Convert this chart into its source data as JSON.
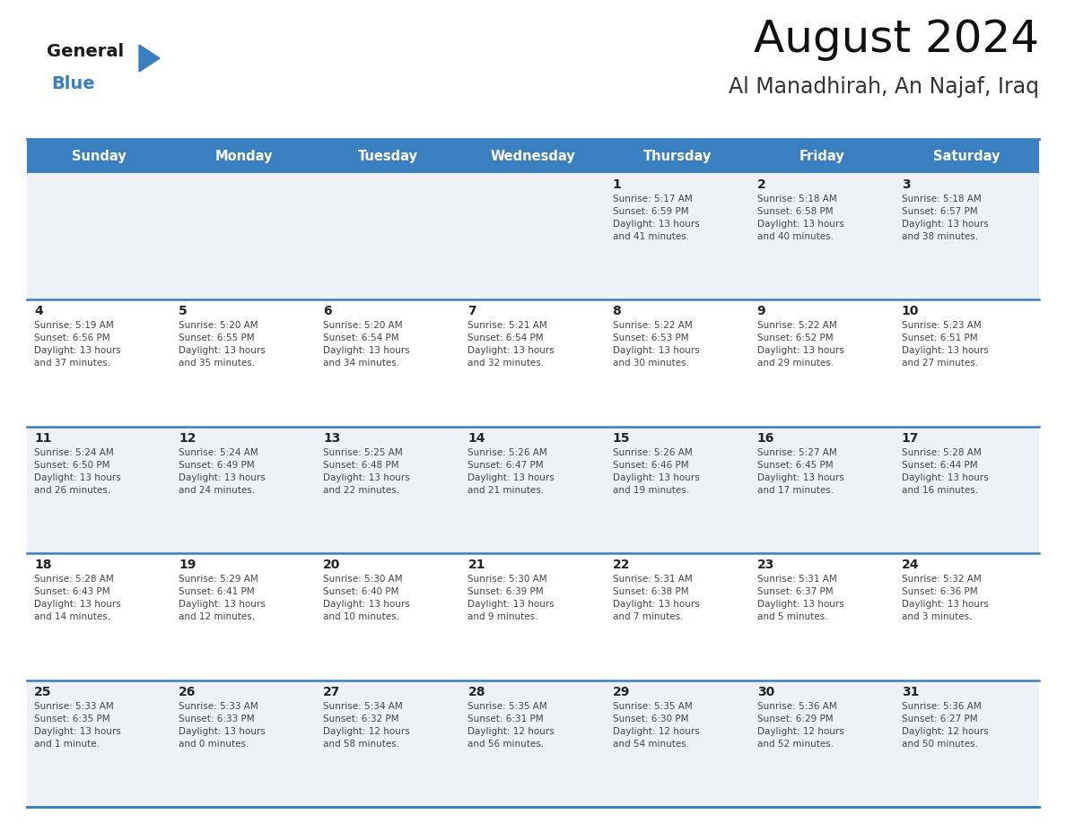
{
  "title": "August 2024",
  "subtitle": "Al Manadhirah, An Najaf, Iraq",
  "days_of_week": [
    "Sunday",
    "Monday",
    "Tuesday",
    "Wednesday",
    "Thursday",
    "Friday",
    "Saturday"
  ],
  "header_bg": "#3a7fbf",
  "header_text": "#ffffff",
  "cell_bg_odd": "#eef2f7",
  "cell_bg_even": "#ffffff",
  "day_number_color": "#222222",
  "info_text_color": "#444444",
  "border_color": "#2a5f9e",
  "line_color": "#3a7fbf",
  "weeks": [
    [
      {
        "day": null,
        "info": ""
      },
      {
        "day": null,
        "info": ""
      },
      {
        "day": null,
        "info": ""
      },
      {
        "day": null,
        "info": ""
      },
      {
        "day": 1,
        "info": "Sunrise: 5:17 AM\nSunset: 6:59 PM\nDaylight: 13 hours\nand 41 minutes."
      },
      {
        "day": 2,
        "info": "Sunrise: 5:18 AM\nSunset: 6:58 PM\nDaylight: 13 hours\nand 40 minutes."
      },
      {
        "day": 3,
        "info": "Sunrise: 5:18 AM\nSunset: 6:57 PM\nDaylight: 13 hours\nand 38 minutes."
      }
    ],
    [
      {
        "day": 4,
        "info": "Sunrise: 5:19 AM\nSunset: 6:56 PM\nDaylight: 13 hours\nand 37 minutes."
      },
      {
        "day": 5,
        "info": "Sunrise: 5:20 AM\nSunset: 6:55 PM\nDaylight: 13 hours\nand 35 minutes."
      },
      {
        "day": 6,
        "info": "Sunrise: 5:20 AM\nSunset: 6:54 PM\nDaylight: 13 hours\nand 34 minutes."
      },
      {
        "day": 7,
        "info": "Sunrise: 5:21 AM\nSunset: 6:54 PM\nDaylight: 13 hours\nand 32 minutes."
      },
      {
        "day": 8,
        "info": "Sunrise: 5:22 AM\nSunset: 6:53 PM\nDaylight: 13 hours\nand 30 minutes."
      },
      {
        "day": 9,
        "info": "Sunrise: 5:22 AM\nSunset: 6:52 PM\nDaylight: 13 hours\nand 29 minutes."
      },
      {
        "day": 10,
        "info": "Sunrise: 5:23 AM\nSunset: 6:51 PM\nDaylight: 13 hours\nand 27 minutes."
      }
    ],
    [
      {
        "day": 11,
        "info": "Sunrise: 5:24 AM\nSunset: 6:50 PM\nDaylight: 13 hours\nand 26 minutes."
      },
      {
        "day": 12,
        "info": "Sunrise: 5:24 AM\nSunset: 6:49 PM\nDaylight: 13 hours\nand 24 minutes."
      },
      {
        "day": 13,
        "info": "Sunrise: 5:25 AM\nSunset: 6:48 PM\nDaylight: 13 hours\nand 22 minutes."
      },
      {
        "day": 14,
        "info": "Sunrise: 5:26 AM\nSunset: 6:47 PM\nDaylight: 13 hours\nand 21 minutes."
      },
      {
        "day": 15,
        "info": "Sunrise: 5:26 AM\nSunset: 6:46 PM\nDaylight: 13 hours\nand 19 minutes."
      },
      {
        "day": 16,
        "info": "Sunrise: 5:27 AM\nSunset: 6:45 PM\nDaylight: 13 hours\nand 17 minutes."
      },
      {
        "day": 17,
        "info": "Sunrise: 5:28 AM\nSunset: 6:44 PM\nDaylight: 13 hours\nand 16 minutes."
      }
    ],
    [
      {
        "day": 18,
        "info": "Sunrise: 5:28 AM\nSunset: 6:43 PM\nDaylight: 13 hours\nand 14 minutes."
      },
      {
        "day": 19,
        "info": "Sunrise: 5:29 AM\nSunset: 6:41 PM\nDaylight: 13 hours\nand 12 minutes."
      },
      {
        "day": 20,
        "info": "Sunrise: 5:30 AM\nSunset: 6:40 PM\nDaylight: 13 hours\nand 10 minutes."
      },
      {
        "day": 21,
        "info": "Sunrise: 5:30 AM\nSunset: 6:39 PM\nDaylight: 13 hours\nand 9 minutes."
      },
      {
        "day": 22,
        "info": "Sunrise: 5:31 AM\nSunset: 6:38 PM\nDaylight: 13 hours\nand 7 minutes."
      },
      {
        "day": 23,
        "info": "Sunrise: 5:31 AM\nSunset: 6:37 PM\nDaylight: 13 hours\nand 5 minutes."
      },
      {
        "day": 24,
        "info": "Sunrise: 5:32 AM\nSunset: 6:36 PM\nDaylight: 13 hours\nand 3 minutes."
      }
    ],
    [
      {
        "day": 25,
        "info": "Sunrise: 5:33 AM\nSunset: 6:35 PM\nDaylight: 13 hours\nand 1 minute."
      },
      {
        "day": 26,
        "info": "Sunrise: 5:33 AM\nSunset: 6:33 PM\nDaylight: 13 hours\nand 0 minutes."
      },
      {
        "day": 27,
        "info": "Sunrise: 5:34 AM\nSunset: 6:32 PM\nDaylight: 12 hours\nand 58 minutes."
      },
      {
        "day": 28,
        "info": "Sunrise: 5:35 AM\nSunset: 6:31 PM\nDaylight: 12 hours\nand 56 minutes."
      },
      {
        "day": 29,
        "info": "Sunrise: 5:35 AM\nSunset: 6:30 PM\nDaylight: 12 hours\nand 54 minutes."
      },
      {
        "day": 30,
        "info": "Sunrise: 5:36 AM\nSunset: 6:29 PM\nDaylight: 12 hours\nand 52 minutes."
      },
      {
        "day": 31,
        "info": "Sunrise: 5:36 AM\nSunset: 6:27 PM\nDaylight: 12 hours\nand 50 minutes."
      }
    ]
  ],
  "logo_text_general": "General",
  "logo_text_blue": "Blue",
  "logo_triangle_color": "#3a7fbf",
  "fig_width": 11.88,
  "fig_height": 9.18,
  "dpi": 100
}
